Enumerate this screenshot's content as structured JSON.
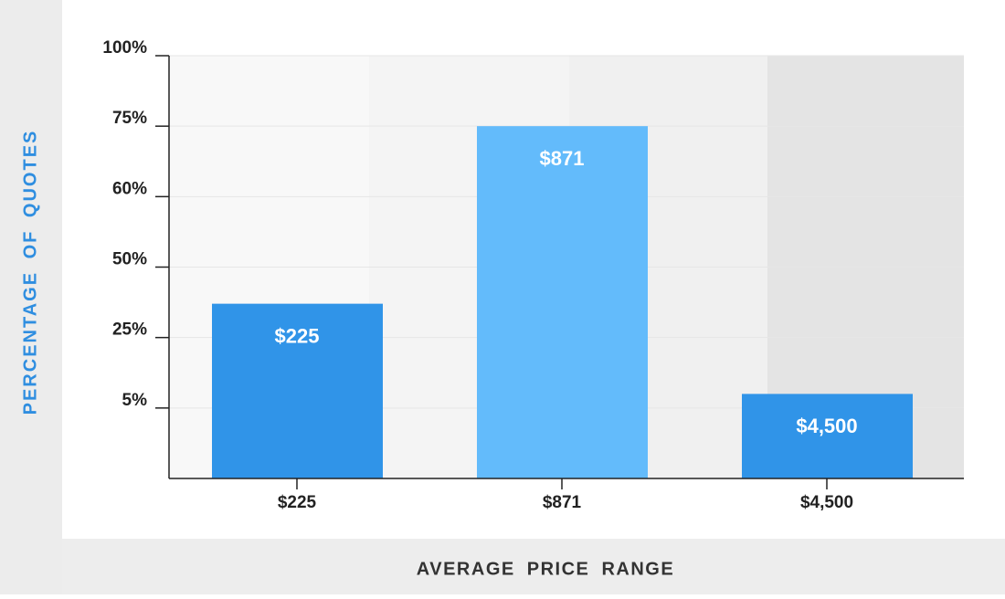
{
  "chart_data": {
    "type": "bar",
    "x_label": "AVERAGE PRICE RANGE",
    "y_label": "PERCENTAGE OF QUOTES",
    "categories": [
      "$225",
      "$871",
      "$4,500"
    ],
    "values": [
      37,
      75,
      9
    ],
    "colors": [
      "#3094e8",
      "#63bbfb",
      "#3094e8"
    ],
    "ylim": [
      0,
      100
    ],
    "yticks": [
      {
        "value": 5,
        "label": "5%"
      },
      {
        "value": 25,
        "label": "25%"
      },
      {
        "value": 50,
        "label": "50%"
      },
      {
        "value": 60,
        "label": "60%"
      },
      {
        "value": 75,
        "label": "75%"
      },
      {
        "value": 100,
        "label": "100%"
      }
    ],
    "grid": true
  }
}
